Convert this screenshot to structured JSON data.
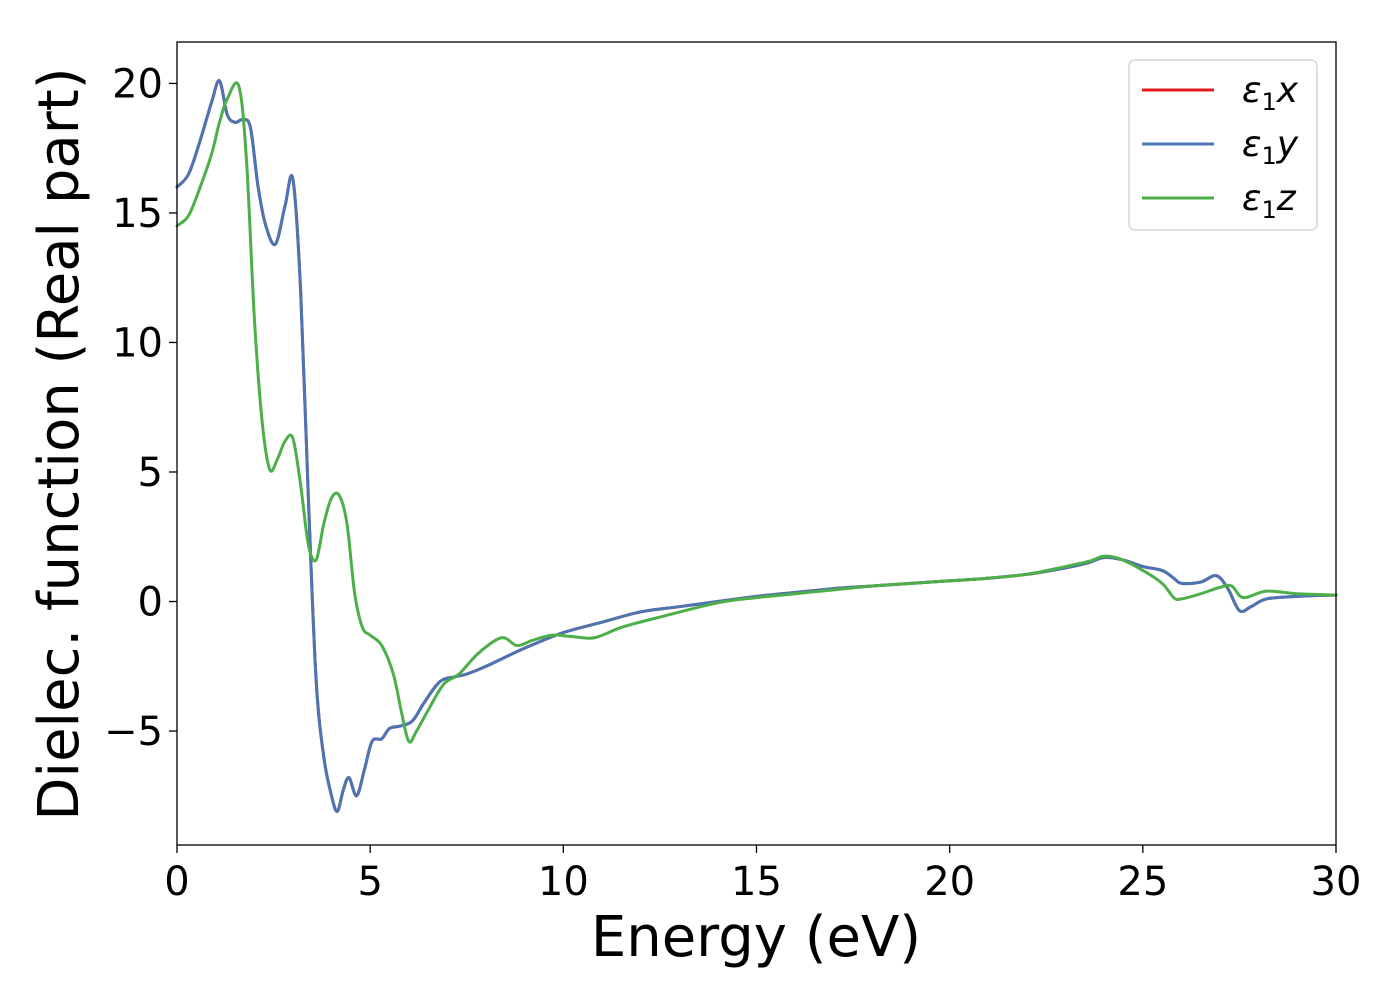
{
  "chart_data": {
    "type": "line",
    "xlabel": "Energy (eV)",
    "ylabel": "Dielec. function (Real part)",
    "xlim": [
      0,
      30
    ],
    "ylim": [
      -9.4,
      21.6
    ],
    "xticks": [
      0,
      5,
      10,
      15,
      20,
      25,
      30
    ],
    "xtick_labels": [
      "0",
      "5",
      "10",
      "15",
      "20",
      "25",
      "30"
    ],
    "yticks": [
      -5,
      0,
      5,
      10,
      15,
      20
    ],
    "ytick_labels": [
      "−5",
      "0",
      "5",
      "10",
      "15",
      "20"
    ],
    "grid": false,
    "legend_position": "top-right",
    "series": [
      {
        "name": "ε₁x",
        "legend_base": "ε",
        "legend_sub": "1",
        "legend_var": "x",
        "color": "#e41a1c",
        "x": [
          0,
          0.3,
          0.6,
          0.9,
          1.1,
          1.3,
          1.5,
          1.7,
          1.9,
          2.1,
          2.3,
          2.55,
          2.8,
          3.0,
          3.2,
          3.4,
          3.6,
          3.8,
          4.0,
          4.15,
          4.3,
          4.45,
          4.65,
          4.85,
          5.05,
          5.3,
          5.5,
          5.8,
          6.1,
          6.4,
          6.8,
          7.2,
          7.5,
          8.0,
          9.0,
          10.0,
          11.0,
          12.0,
          13.0,
          14.0,
          15.0,
          16.0,
          17.0,
          18.0,
          19.0,
          20.0,
          21.0,
          22.0,
          23.0,
          23.6,
          24.0,
          24.5,
          25.0,
          25.5,
          25.8,
          26.0,
          26.5,
          26.9,
          27.2,
          27.5,
          27.8,
          28.2,
          29.0,
          30.0
        ],
        "y": [
          16.0,
          16.5,
          17.8,
          19.3,
          20.1,
          18.8,
          18.5,
          18.6,
          18.3,
          16.0,
          14.5,
          13.8,
          15.3,
          16.3,
          12.0,
          4.0,
          -3.0,
          -6.0,
          -7.5,
          -8.1,
          -7.3,
          -6.8,
          -7.5,
          -6.5,
          -5.4,
          -5.3,
          -4.9,
          -4.8,
          -4.6,
          -3.9,
          -3.1,
          -2.9,
          -2.8,
          -2.5,
          -1.8,
          -1.2,
          -0.8,
          -0.4,
          -0.2,
          0.0,
          0.2,
          0.35,
          0.5,
          0.6,
          0.7,
          0.8,
          0.9,
          1.05,
          1.3,
          1.5,
          1.7,
          1.6,
          1.35,
          1.2,
          0.9,
          0.7,
          0.75,
          1.0,
          0.5,
          -0.35,
          -0.2,
          0.1,
          0.2,
          0.25
        ]
      },
      {
        "name": "ε₁y",
        "legend_base": "ε",
        "legend_sub": "1",
        "legend_var": "y",
        "color": "#4a76b4",
        "x": [
          0,
          0.3,
          0.6,
          0.9,
          1.1,
          1.3,
          1.5,
          1.7,
          1.9,
          2.1,
          2.3,
          2.55,
          2.8,
          3.0,
          3.2,
          3.4,
          3.6,
          3.8,
          4.0,
          4.15,
          4.3,
          4.45,
          4.65,
          4.85,
          5.05,
          5.3,
          5.5,
          5.8,
          6.1,
          6.4,
          6.8,
          7.2,
          7.5,
          8.0,
          9.0,
          10.0,
          11.0,
          12.0,
          13.0,
          14.0,
          15.0,
          16.0,
          17.0,
          18.0,
          19.0,
          20.0,
          21.0,
          22.0,
          23.0,
          23.6,
          24.0,
          24.5,
          25.0,
          25.5,
          25.8,
          26.0,
          26.5,
          26.9,
          27.2,
          27.5,
          27.8,
          28.2,
          29.0,
          30.0
        ],
        "y": [
          16.0,
          16.5,
          17.8,
          19.3,
          20.1,
          18.8,
          18.5,
          18.6,
          18.3,
          16.0,
          14.5,
          13.8,
          15.3,
          16.3,
          12.0,
          4.0,
          -3.0,
          -6.0,
          -7.5,
          -8.1,
          -7.3,
          -6.8,
          -7.5,
          -6.5,
          -5.4,
          -5.3,
          -4.9,
          -4.8,
          -4.6,
          -3.9,
          -3.1,
          -2.9,
          -2.8,
          -2.5,
          -1.8,
          -1.2,
          -0.8,
          -0.4,
          -0.2,
          0.0,
          0.2,
          0.35,
          0.5,
          0.6,
          0.7,
          0.8,
          0.9,
          1.05,
          1.3,
          1.5,
          1.7,
          1.6,
          1.35,
          1.2,
          0.9,
          0.7,
          0.75,
          1.0,
          0.5,
          -0.35,
          -0.2,
          0.1,
          0.2,
          0.25
        ]
      },
      {
        "name": "ε₁z",
        "legend_base": "ε",
        "legend_sub": "1",
        "legend_var": "z",
        "color": "#4daf4a",
        "x": [
          0,
          0.3,
          0.6,
          0.9,
          1.1,
          1.3,
          1.6,
          1.8,
          2.0,
          2.2,
          2.4,
          2.6,
          2.8,
          3.0,
          3.2,
          3.4,
          3.6,
          3.8,
          4.0,
          4.2,
          4.4,
          4.6,
          4.8,
          5.0,
          5.3,
          5.6,
          5.8,
          6.0,
          6.2,
          6.5,
          6.9,
          7.3,
          7.8,
          8.4,
          8.8,
          9.2,
          9.7,
          10.2,
          10.8,
          11.5,
          12.5,
          14.0,
          15.0,
          16.0,
          17.0,
          18.0,
          19.0,
          20.0,
          21.0,
          22.0,
          23.0,
          23.6,
          24.0,
          24.4,
          25.0,
          25.5,
          25.8,
          26.0,
          26.5,
          27.0,
          27.3,
          27.6,
          28.2,
          29.0,
          30.0
        ],
        "y": [
          14.5,
          14.9,
          16.0,
          17.3,
          18.5,
          19.4,
          19.9,
          17.0,
          11.0,
          7.0,
          5.1,
          5.5,
          6.2,
          6.3,
          4.5,
          2.2,
          1.6,
          3.0,
          4.0,
          4.1,
          3.0,
          0.3,
          -1.0,
          -1.3,
          -1.7,
          -2.8,
          -4.2,
          -5.4,
          -5.0,
          -4.2,
          -3.2,
          -2.8,
          -2.0,
          -1.4,
          -1.7,
          -1.5,
          -1.3,
          -1.35,
          -1.4,
          -1.0,
          -0.6,
          -0.05,
          0.15,
          0.3,
          0.45,
          0.6,
          0.7,
          0.8,
          0.9,
          1.05,
          1.35,
          1.55,
          1.75,
          1.65,
          1.2,
          0.7,
          0.15,
          0.1,
          0.3,
          0.55,
          0.6,
          0.15,
          0.4,
          0.3,
          0.25
        ]
      }
    ]
  }
}
